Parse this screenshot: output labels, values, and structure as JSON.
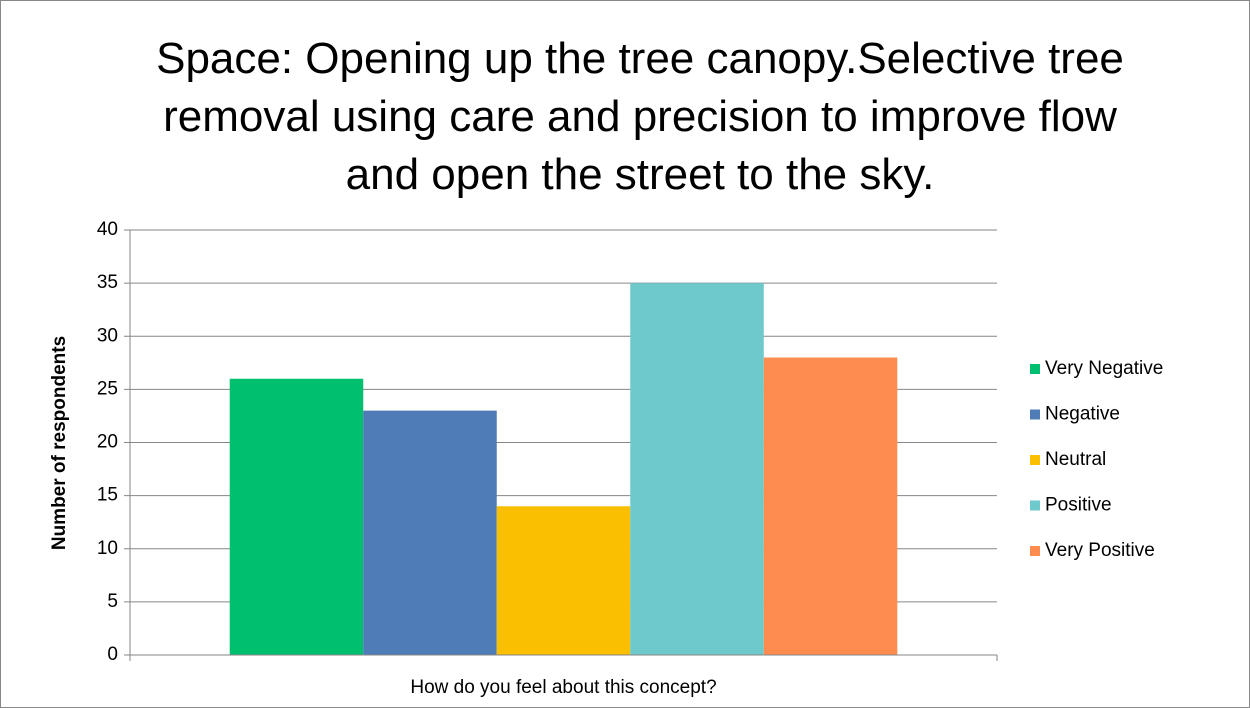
{
  "chart_data": {
    "type": "bar",
    "title": "Space: Opening up the tree canopy.Selective tree removal using care and precision to improve flow and open the street to the sky.",
    "y_label": "Number of respondents",
    "categories": [
      "How do you feel about this concept?"
    ],
    "series": [
      {
        "name": "Very Negative",
        "color": "#00bf6f",
        "values": [
          26
        ]
      },
      {
        "name": "Negative",
        "color": "#4f7cb6",
        "values": [
          23
        ]
      },
      {
        "name": "Neutral",
        "color": "#f9bf00",
        "values": [
          14
        ]
      },
      {
        "name": "Positive",
        "color": "#6ec9cc",
        "values": [
          35
        ]
      },
      {
        "name": "Very Positive",
        "color": "#ff8c4f",
        "values": [
          28
        ]
      }
    ],
    "ylim": [
      0,
      40
    ],
    "yticks": [
      0,
      5,
      10,
      15,
      20,
      25,
      30,
      35,
      40
    ],
    "grid": true,
    "legend": "right"
  }
}
